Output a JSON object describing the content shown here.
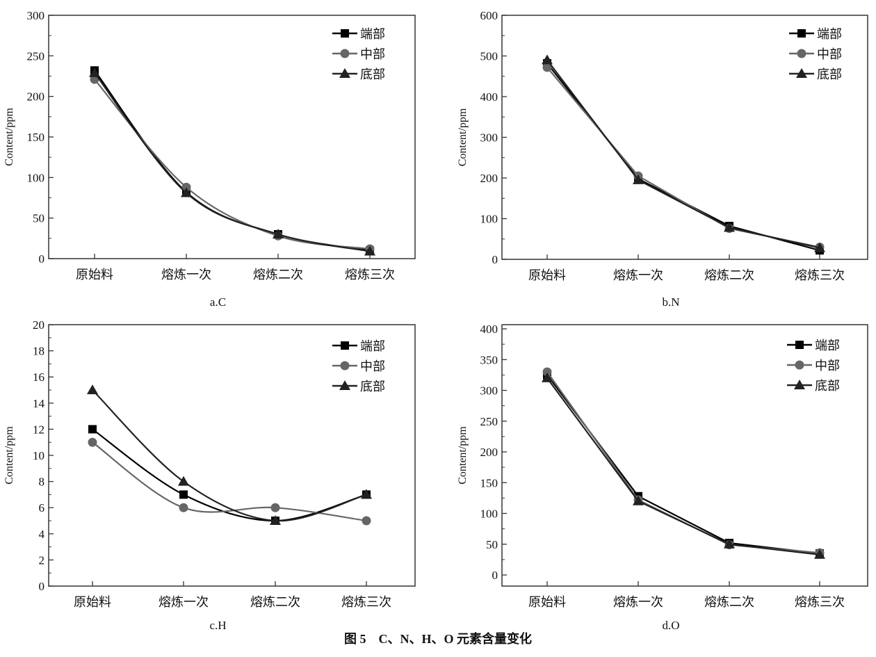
{
  "figure_title": "图 5　C、N、H、O 元素含量变化",
  "chart_data": [
    {
      "type": "line",
      "caption": "a.C",
      "ylabel": "Content/ppm",
      "categories": [
        "原始料",
        "熔炼一次",
        "熔炼二次",
        "熔炼三次"
      ],
      "ylim": [
        0,
        300
      ],
      "yticks": [
        0,
        50,
        100,
        150,
        200,
        250,
        300
      ],
      "smooth": true,
      "legend": "top-right",
      "grid": false,
      "series": [
        {
          "name": "端部",
          "marker": "square",
          "color": "#000000",
          "values": [
            232,
            82,
            30,
            10
          ]
        },
        {
          "name": "中部",
          "marker": "circle",
          "color": "#666666",
          "values": [
            221,
            88,
            28,
            12
          ]
        },
        {
          "name": "底部",
          "marker": "triangle",
          "color": "#222222",
          "values": [
            229,
            81,
            30,
            9
          ]
        }
      ]
    },
    {
      "type": "line",
      "caption": "b.N",
      "ylabel": "Content/ppm",
      "categories": [
        "原始料",
        "熔炼一次",
        "熔炼二次",
        "熔炼三次"
      ],
      "ylim": [
        0,
        600
      ],
      "yticks": [
        0,
        100,
        200,
        300,
        400,
        500,
        600
      ],
      "smooth": false,
      "legend": "top-right",
      "grid": false,
      "series": [
        {
          "name": "端部",
          "marker": "square",
          "color": "#000000",
          "values": [
            482,
            198,
            82,
            22
          ]
        },
        {
          "name": "中部",
          "marker": "circle",
          "color": "#666666",
          "values": [
            472,
            205,
            76,
            30
          ]
        },
        {
          "name": "底部",
          "marker": "triangle",
          "color": "#222222",
          "values": [
            490,
            195,
            78,
            28
          ]
        }
      ]
    },
    {
      "type": "line",
      "caption": "c.H",
      "ylabel": "Content/ppm",
      "categories": [
        "原始料",
        "熔炼一次",
        "熔炼二次",
        "熔炼三次"
      ],
      "ylim": [
        0,
        20
      ],
      "yticks": [
        0,
        2,
        4,
        6,
        8,
        10,
        12,
        14,
        16,
        18,
        20
      ],
      "smooth": true,
      "legend": "top-right",
      "grid": false,
      "series": [
        {
          "name": "端部",
          "marker": "square",
          "color": "#000000",
          "values": [
            12,
            7,
            5,
            7
          ]
        },
        {
          "name": "中部",
          "marker": "circle",
          "color": "#666666",
          "values": [
            11,
            6,
            6,
            5
          ]
        },
        {
          "name": "底部",
          "marker": "triangle",
          "color": "#222222",
          "values": [
            15,
            8,
            5,
            7
          ]
        }
      ]
    },
    {
      "type": "line",
      "caption": "d.O",
      "ylabel": "Content/ppm",
      "categories": [
        "原始料",
        "熔炼一次",
        "熔炼二次",
        "熔炼三次"
      ],
      "ylim": [
        0,
        400
      ],
      "yticks": [
        0,
        50,
        100,
        150,
        200,
        250,
        300,
        350,
        400
      ],
      "smooth": false,
      "legend": "top-right",
      "grid": false,
      "series": [
        {
          "name": "端部",
          "marker": "square",
          "color": "#000000",
          "values": [
            325,
            128,
            52,
            35
          ]
        },
        {
          "name": "中部",
          "marker": "circle",
          "color": "#666666",
          "values": [
            330,
            122,
            49,
            36
          ]
        },
        {
          "name": "底部",
          "marker": "triangle",
          "color": "#222222",
          "values": [
            320,
            120,
            50,
            33
          ]
        }
      ]
    }
  ]
}
